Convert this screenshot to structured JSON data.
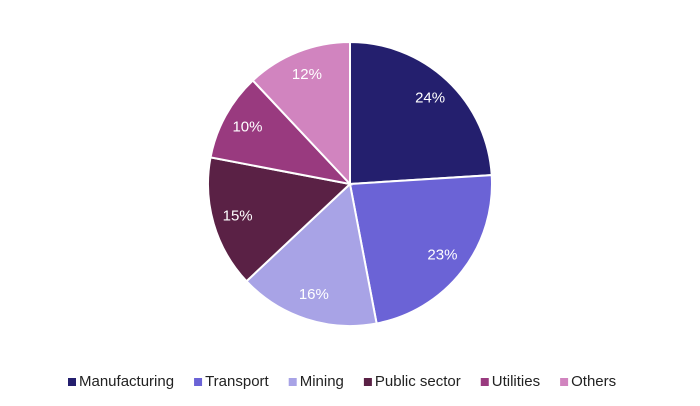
{
  "chart_data": {
    "type": "pie",
    "categories": [
      "Manufacturing",
      "Transport",
      "Mining",
      "Public sector",
      "Utilities",
      "Others"
    ],
    "values": [
      24,
      23,
      16,
      15,
      10,
      12
    ],
    "value_labels": [
      "24%",
      "23%",
      "16%",
      "15%",
      "10%",
      "12%"
    ],
    "colors": [
      "#241f6e",
      "#6b63d6",
      "#a8a3e6",
      "#5a2145",
      "#993a7f",
      "#d184bf"
    ],
    "legend": "bottom"
  }
}
